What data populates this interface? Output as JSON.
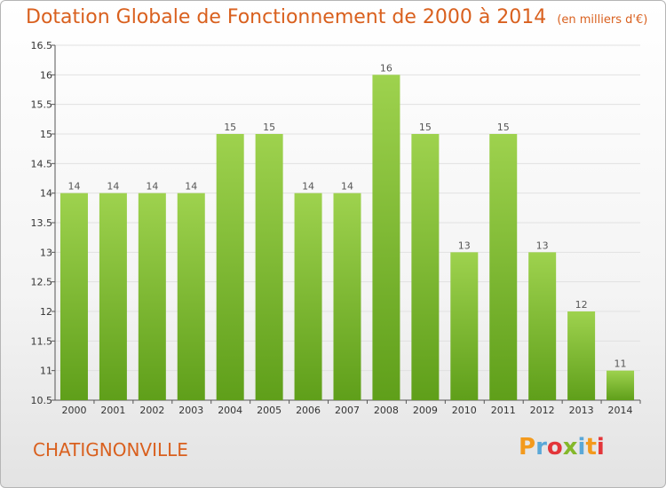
{
  "header": {
    "title": "Dotation Globale de Fonctionnement de 2000 à 2014",
    "subtitle": "(en milliers d'€)"
  },
  "footer": {
    "commune": "CHATIGNONVILLE",
    "logo_text": "Proxiti",
    "logo_colors": [
      "#f39a1d",
      "#5aa8d8",
      "#e3363a",
      "#84b82a",
      "#5aa8d8",
      "#f39a1d",
      "#e3363a"
    ]
  },
  "chart_data": {
    "type": "bar",
    "categories": [
      "2000",
      "2001",
      "2002",
      "2003",
      "2004",
      "2005",
      "2006",
      "2007",
      "2008",
      "2009",
      "2010",
      "2011",
      "2012",
      "2013",
      "2014"
    ],
    "values": [
      14,
      14,
      14,
      14,
      15,
      15,
      14,
      14,
      16,
      15,
      13,
      15,
      13,
      12,
      11
    ],
    "labels": [
      "14",
      "14",
      "14",
      "14",
      "15",
      "15",
      "14",
      "14",
      "16",
      "15",
      "13",
      "15",
      "13",
      "12",
      "11"
    ],
    "yticks": [
      "10.5",
      "11",
      "11.5",
      "12",
      "12.5",
      "13",
      "13.5",
      "14",
      "14.5",
      "15",
      "15.5",
      "16",
      "16.5"
    ],
    "ylim": [
      10.5,
      16.5
    ],
    "grid": true,
    "colors": {
      "bar_top": "#9ed24e",
      "bar_bottom": "#5f9f1a",
      "grid": "#e1e1e1"
    }
  }
}
